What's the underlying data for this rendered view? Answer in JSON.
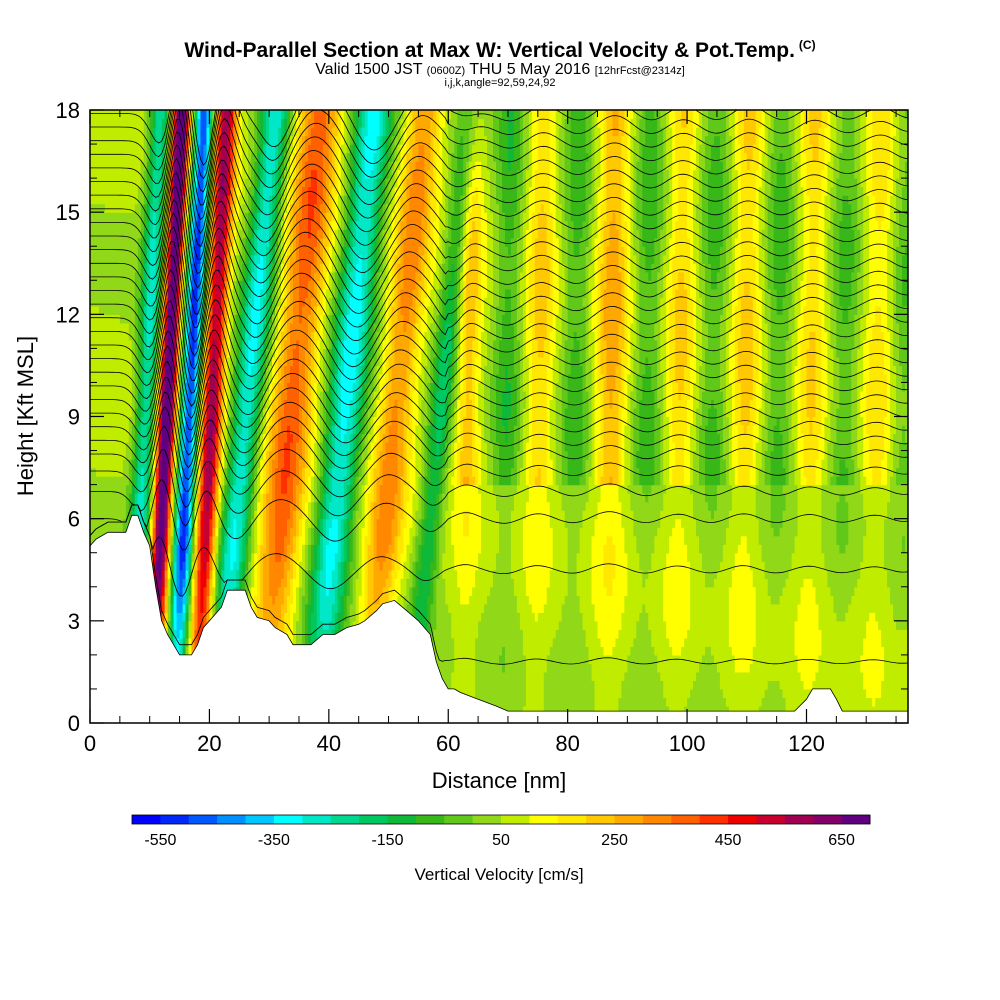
{
  "chart_data": {
    "type": "heatmap",
    "title": "Wind-Parallel Section at Max W: Vertical Velocity & Pot.Temp.",
    "title_units": "(C)",
    "subtitle_valid": "Valid 1500 JST",
    "subtitle_utc": "(0600Z)",
    "subtitle_date": "THU 5 May 2016",
    "subtitle_fcst": "[12hrFcst@2314z]",
    "subtitle_indices": "i,j,k,angle=92,59,24,92",
    "xlabel": "Distance [nm]",
    "ylabel": "Height [Kft MSL]",
    "xlim": [
      0,
      137
    ],
    "ylim": [
      0,
      18
    ],
    "x_ticks": [
      "0",
      "20",
      "40",
      "60",
      "80",
      "100",
      "120"
    ],
    "y_ticks": [
      "0",
      "3",
      "6",
      "9",
      "12",
      "15",
      "18"
    ],
    "x_tick_values": [
      0,
      20,
      40,
      60,
      80,
      100,
      120
    ],
    "y_tick_values": [
      0,
      3,
      6,
      9,
      12,
      15,
      18
    ],
    "colorbar": {
      "title": "Vertical Velocity [cm/s]",
      "labels": [
        "-550",
        "-350",
        "-150",
        "50",
        "250",
        "450",
        "650"
      ],
      "label_values": [
        -550,
        -350,
        -150,
        50,
        250,
        450,
        650
      ],
      "min": -600,
      "max": 700,
      "colors": [
        "#0000ff",
        "#0028f8",
        "#0058ff",
        "#0090ff",
        "#00c8ff",
        "#00ffff",
        "#00e8c8",
        "#00d890",
        "#00c860",
        "#10b838",
        "#38b818",
        "#60c818",
        "#90d818",
        "#c0ec00",
        "#ffff00",
        "#ffe800",
        "#ffc800",
        "#ffa800",
        "#ff8800",
        "#ff6000",
        "#ff3000",
        "#ee0000",
        "#c80030",
        "#a00050",
        "#820068",
        "#600080"
      ]
    },
    "terrain": [
      [
        0,
        5.2
      ],
      [
        1,
        5.4
      ],
      [
        3,
        5.6
      ],
      [
        6,
        5.6
      ],
      [
        7,
        6.1
      ],
      [
        8,
        6.1
      ],
      [
        9,
        5.6
      ],
      [
        10,
        5.2
      ],
      [
        11,
        4.0
      ],
      [
        12,
        3.0
      ],
      [
        13,
        2.6
      ],
      [
        14,
        2.3
      ],
      [
        15,
        2.0
      ],
      [
        17,
        2.0
      ],
      [
        18,
        2.3
      ],
      [
        19,
        2.8
      ],
      [
        20,
        3.0
      ],
      [
        22,
        3.4
      ],
      [
        23,
        3.9
      ],
      [
        26,
        3.9
      ],
      [
        27,
        3.4
      ],
      [
        28,
        3.1
      ],
      [
        30,
        3.0
      ],
      [
        31,
        2.8
      ],
      [
        33,
        2.6
      ],
      [
        34,
        2.3
      ],
      [
        37,
        2.3
      ],
      [
        39,
        2.6
      ],
      [
        41,
        2.6
      ],
      [
        43,
        2.8
      ],
      [
        45,
        2.9
      ],
      [
        46,
        3.0
      ],
      [
        48,
        3.3
      ],
      [
        49,
        3.5
      ],
      [
        51,
        3.6
      ],
      [
        53,
        3.3
      ],
      [
        55,
        3.0
      ],
      [
        57,
        2.6
      ],
      [
        58,
        1.8
      ],
      [
        59,
        1.3
      ],
      [
        60,
        1.0
      ],
      [
        61,
        1.0
      ],
      [
        62,
        0.9
      ],
      [
        65,
        0.7
      ],
      [
        68,
        0.5
      ],
      [
        70,
        0.35
      ],
      [
        100,
        0.35
      ],
      [
        118,
        0.35
      ],
      [
        120,
        0.7
      ],
      [
        121,
        1.0
      ],
      [
        124,
        1.0
      ],
      [
        125,
        0.7
      ],
      [
        126,
        0.35
      ],
      [
        137,
        0.35
      ]
    ],
    "vertical_velocity_bands": [
      {
        "x": 8.5,
        "w": 1.8,
        "amp": -320
      },
      {
        "x": 12.0,
        "w": 1.5,
        "amp": 700
      },
      {
        "x": 15.8,
        "w": 1.6,
        "amp": -580
      },
      {
        "x": 19.5,
        "w": 1.8,
        "amp": 520
      },
      {
        "x": 24.5,
        "w": 2.6,
        "amp": -360
      },
      {
        "x": 32.0,
        "w": 3.6,
        "amp": 320
      },
      {
        "x": 41.0,
        "w": 3.2,
        "amp": -380
      },
      {
        "x": 49.5,
        "w": 3.0,
        "amp": 260
      },
      {
        "x": 57.0,
        "w": 2.0,
        "amp": -220
      },
      {
        "x": 63.0,
        "w": 2.0,
        "amp": 180
      },
      {
        "x": 69.5,
        "w": 2.3,
        "amp": -140
      },
      {
        "x": 75.0,
        "w": 2.3,
        "amp": 150
      },
      {
        "x": 81.0,
        "w": 2.3,
        "amp": -130
      },
      {
        "x": 87.0,
        "w": 2.6,
        "amp": 210
      },
      {
        "x": 93.0,
        "w": 2.3,
        "amp": -130
      },
      {
        "x": 98.5,
        "w": 2.3,
        "amp": 140
      },
      {
        "x": 104.0,
        "w": 2.3,
        "amp": -120
      },
      {
        "x": 109.5,
        "w": 2.3,
        "amp": 150
      },
      {
        "x": 115.0,
        "w": 2.3,
        "amp": -120
      },
      {
        "x": 120.5,
        "w": 2.3,
        "amp": 130
      },
      {
        "x": 126.0,
        "w": 2.3,
        "amp": -110
      },
      {
        "x": 131.5,
        "w": 2.3,
        "amp": 110
      },
      {
        "x": 136.0,
        "w": 2.0,
        "amp": -90
      }
    ],
    "theta_isentrope_base_heights": [
      1.8,
      4.5,
      6.0,
      6.8,
      7.4,
      7.9,
      8.3,
      8.7,
      9.1,
      9.5,
      9.9,
      10.3,
      10.7,
      11.1,
      11.5,
      11.9,
      12.3,
      12.7,
      13.1,
      13.5,
      13.9,
      14.3,
      14.7,
      15.1,
      15.5,
      15.9,
      16.3,
      16.7,
      17.1,
      17.5,
      17.9
    ]
  }
}
